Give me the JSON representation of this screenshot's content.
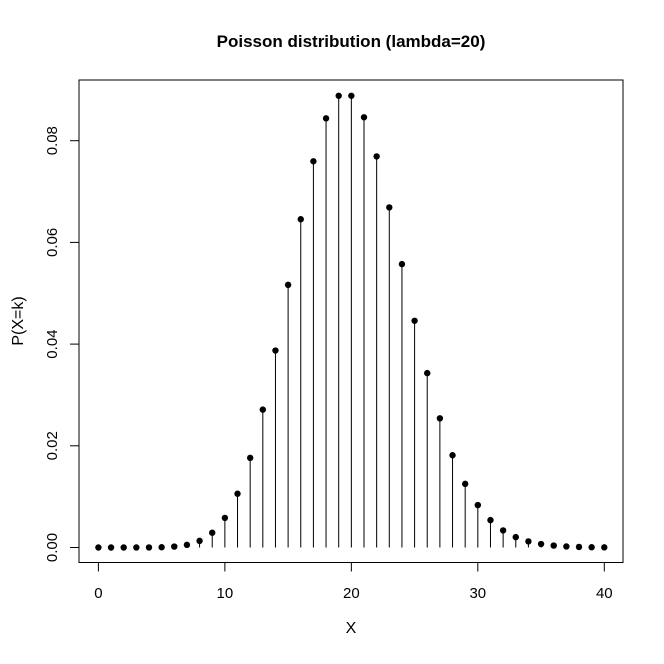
{
  "chart_data": {
    "type": "stem",
    "title": "Poisson distribution (lambda=20)",
    "xlabel": "X",
    "ylabel": "P(X=k)",
    "lambda": 20,
    "x": [
      0,
      1,
      2,
      3,
      4,
      5,
      6,
      7,
      8,
      9,
      10,
      11,
      12,
      13,
      14,
      15,
      16,
      17,
      18,
      19,
      20,
      21,
      22,
      23,
      24,
      25,
      26,
      27,
      28,
      29,
      30,
      31,
      32,
      33,
      34,
      35,
      36,
      37,
      38,
      39,
      40
    ],
    "values": [
      2.0612e-09,
      4.1223e-08,
      4.1223e-07,
      2.7482e-06,
      1.3741e-05,
      5.4964e-05,
      0.000183214,
      0.000523468,
      0.001308669,
      0.002908153,
      0.005816307,
      0.010575103,
      0.017625171,
      0.027115648,
      0.03873664,
      0.051648854,
      0.064561067,
      0.075954196,
      0.084393551,
      0.088835317,
      0.088835317,
      0.084605064,
      0.076913695,
      0.066881474,
      0.055734561,
      0.044587649,
      0.034298192,
      0.025406068,
      0.018147191,
      0.012515235,
      0.00834349,
      0.005382897,
      0.003364311,
      0.002038976,
      0.001199398,
      0.00068537,
      0.0003807612,
      0.0002058169,
      0.0001083247,
      5.55511e-05,
      2.777555e-05
    ],
    "xlim": [
      0,
      40
    ],
    "ylim": [
      0,
      0.0888353
    ],
    "x_ticks": [
      0,
      10,
      20,
      30,
      40
    ],
    "x_tick_labels": [
      "0",
      "10",
      "20",
      "30",
      "40"
    ],
    "y_ticks": [
      0,
      0.02,
      0.04,
      0.06,
      0.08
    ],
    "y_tick_labels": [
      "0.00",
      "0.02",
      "0.04",
      "0.06",
      "0.08"
    ],
    "grid": false,
    "marker": "filled-circle",
    "stem_color": "#000000",
    "point_color": "#000000",
    "axis_color": "#000000",
    "background": "#ffffff"
  }
}
